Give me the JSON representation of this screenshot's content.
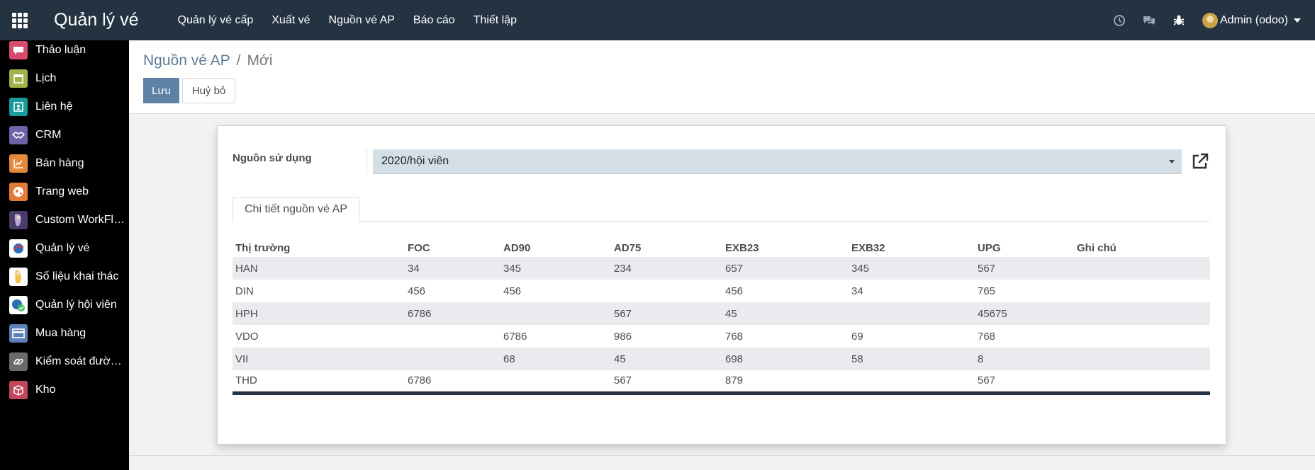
{
  "app": {
    "title": "Quản lý vé"
  },
  "navbar": {
    "menu": [
      "Quản lý vé cấp",
      "Xuất vé",
      "Nguồn vé AP",
      "Báo cáo",
      "Thiết lập"
    ],
    "user": "Admin (odoo)"
  },
  "sidebar": {
    "items": [
      {
        "label": "Thảo luận",
        "icon": "chat-bubble-icon",
        "color": "#d94b6d"
      },
      {
        "label": "Lịch",
        "icon": "calendar-icon",
        "color": "#a3b34c"
      },
      {
        "label": "Liên hệ",
        "icon": "contact-card-icon",
        "color": "#1a9b9b"
      },
      {
        "label": "CRM",
        "icon": "handshake-icon",
        "color": "#6e63a9"
      },
      {
        "label": "Bán hàng",
        "icon": "sales-chart-icon",
        "color": "#e48a3c"
      },
      {
        "label": "Trang web",
        "icon": "globe-icon",
        "color": "#e37a35"
      },
      {
        "label": "Custom WorkFlow",
        "icon": "custom-workflow-icon",
        "color": "#4a3b6b"
      },
      {
        "label": "Quản lý vé",
        "icon": "ticket-app-icon",
        "color": "#ffffff"
      },
      {
        "label": "Số liệu khai thác",
        "icon": "statistics-app-icon",
        "color": "#ffffff"
      },
      {
        "label": "Quản lý hội viên",
        "icon": "membership-app-icon",
        "color": "#ffffff"
      },
      {
        "label": "Mua hàng",
        "icon": "purchase-card-icon",
        "color": "#5c7fb5"
      },
      {
        "label": "Kiểm soát đường dẫn",
        "icon": "link-chain-icon",
        "color": "#6b6b6b"
      },
      {
        "label": "Kho",
        "icon": "inventory-box-icon",
        "color": "#c0475a"
      }
    ]
  },
  "breadcrumb": {
    "parent": "Nguồn vé AP",
    "separator": "/",
    "current": "Mới"
  },
  "buttons": {
    "save": "Lưu",
    "cancel": "Huỷ bỏ"
  },
  "form": {
    "source_label": "Nguồn sử dụng",
    "source_value": "2020/hội viên"
  },
  "tabs": [
    {
      "label": "Chi tiết nguồn vé AP"
    }
  ],
  "table": {
    "headers": [
      "Thị trường",
      "FOC",
      "AD90",
      "AD75",
      "EXB23",
      "EXB32",
      "UPG",
      "Ghi chú"
    ],
    "rows": [
      [
        "HAN",
        "34",
        "345",
        "234",
        "657",
        "345",
        "567",
        ""
      ],
      [
        "DIN",
        "456",
        "456",
        "",
        "456",
        "34",
        "765",
        ""
      ],
      [
        "HPH",
        "6786",
        "",
        "567",
        "45",
        "",
        "45675",
        ""
      ],
      [
        "VDO",
        "",
        "6786",
        "986",
        "768",
        "69",
        "768",
        ""
      ],
      [
        "VII",
        "",
        "68",
        "45",
        "698",
        "58",
        "8",
        ""
      ],
      [
        "THD",
        "6786",
        "",
        "567",
        "879",
        "",
        "567",
        ""
      ]
    ]
  }
}
